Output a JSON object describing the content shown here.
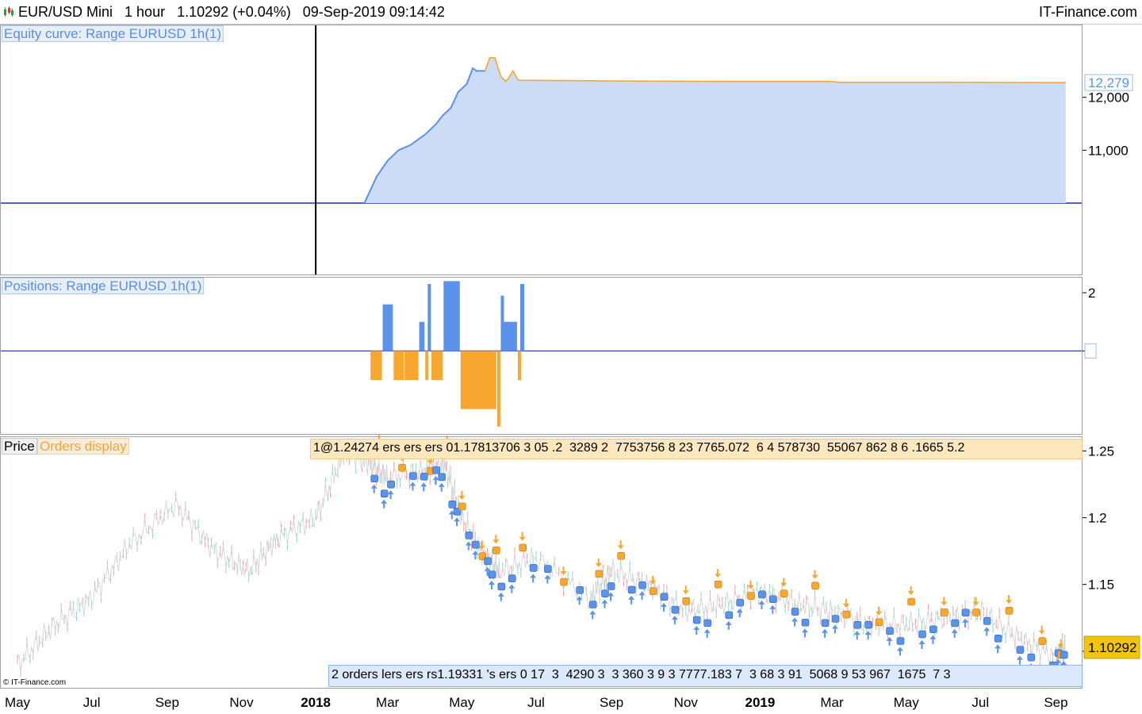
{
  "header": {
    "instrument": "EUR/USD Mini",
    "timeframe": "1 hour",
    "price": "1.10292",
    "change": "(+0.04%)",
    "datetime": "09-Sep-2019 09:14:42",
    "brand": "IT-Finance.com"
  },
  "panels": {
    "equity_label": "Equity curve: Range EURUSD 1h(1)",
    "positions_label": "Positions: Range EURUSD 1h(1)",
    "price_label": "Price",
    "orders_label": "Orders display",
    "orders_top_text": "1@1.24274 ers ers ers 01.17813706 3 05 .2  3289 2  7753756 8 23 7765.072  6 4 578730  55067 862 8 6 .1665 5.2",
    "orders_bottom_text": "2 orders lers ers rs1.19331 's ers 0 17  3  4290 3  3 360 3 9 3 7777.183 7  3 68 3 91  5068 9 53 967  1675  7 3",
    "watermark": "© IT-Finance.com"
  },
  "colors": {
    "blue": "#5b93ea",
    "orange": "#f7a72d",
    "fill": "#ccdcf7",
    "price_tag": "#f2c40f"
  },
  "chart_data": [
    {
      "type": "area",
      "title": "Equity curve: Range EURUSD 1h(1)",
      "yticks": [
        "11,000",
        "12,000"
      ],
      "last_value_label": "12,279",
      "ylim": [
        8650,
        13300
      ],
      "x": [
        "2018-02-10",
        "2018-02-20",
        "2018-03-01",
        "2018-03-10",
        "2018-03-20",
        "2018-04-01",
        "2018-04-10",
        "2018-04-15",
        "2018-04-22",
        "2018-04-28",
        "2018-05-05",
        "2018-05-10",
        "2018-05-13",
        "2018-05-20",
        "2018-05-24",
        "2018-05-28",
        "2018-06-02",
        "2018-06-06",
        "2018-06-08",
        "2018-06-12",
        "2018-06-16",
        "2018-06-18",
        "2018-07-01",
        "2018-09-01",
        "2018-12-01",
        "2019-03-01",
        "2019-03-05",
        "2019-06-01",
        "2019-09-09"
      ],
      "y": [
        10000,
        10500,
        10800,
        11000,
        11100,
        11300,
        11500,
        11650,
        11800,
        12100,
        12250,
        12550,
        12500,
        12500,
        12750,
        12750,
        12400,
        12300,
        12350,
        12500,
        12330,
        12320,
        12320,
        12310,
        12300,
        12300,
        12285,
        12285,
        12279
      ]
    },
    {
      "type": "bar",
      "title": "Positions: Range EURUSD 1h(1)",
      "yticks": [
        "2",
        "0"
      ],
      "ylim": [
        -2.8,
        2.3
      ],
      "x": [
        "2018-02-15",
        "2018-02-25",
        "2018-03-06",
        "2018-03-15",
        "2018-03-27",
        "2018-04-01",
        "2018-04-03",
        "2018-04-06",
        "2018-04-16",
        "2018-04-30",
        "2018-05-30",
        "2018-06-02",
        "2018-06-04",
        "2018-06-16",
        "2018-06-18"
      ],
      "values": [
        -1,
        1.6,
        -1,
        -1,
        1,
        -1,
        2.3,
        -1,
        2.4,
        -2,
        -2.6,
        1.9,
        1,
        -1,
        2.3
      ]
    },
    {
      "type": "line",
      "title": "Price",
      "yticks": [
        "1.25",
        "1.2",
        "1.15",
        "1.1"
      ],
      "last_price": "1.10292",
      "ylim": [
        1.072,
        1.255
      ],
      "x": [
        "2017-05-01",
        "2017-06-01",
        "2017-07-01",
        "2017-08-01",
        "2017-09-08",
        "2017-10-10",
        "2017-11-07",
        "2017-12-01",
        "2018-01-01",
        "2018-01-25",
        "2018-02-15",
        "2018-03-01",
        "2018-04-01",
        "2018-04-17",
        "2018-05-01",
        "2018-05-20",
        "2018-06-01",
        "2018-07-01",
        "2018-08-15",
        "2018-09-01",
        "2018-10-01",
        "2018-11-01",
        "2018-12-01",
        "2019-01-01",
        "2019-02-01",
        "2019-03-01",
        "2019-04-01",
        "2019-05-01",
        "2019-06-01",
        "2019-07-01",
        "2019-08-01",
        "2019-09-01",
        "2019-09-09"
      ],
      "y": [
        1.09,
        1.12,
        1.14,
        1.18,
        1.21,
        1.175,
        1.16,
        1.185,
        1.2,
        1.25,
        1.24,
        1.23,
        1.235,
        1.24,
        1.2,
        1.17,
        1.16,
        1.17,
        1.14,
        1.16,
        1.15,
        1.13,
        1.135,
        1.145,
        1.135,
        1.13,
        1.12,
        1.12,
        1.125,
        1.13,
        1.11,
        1.095,
        1.103
      ]
    }
  ],
  "x_axis": {
    "range": [
      "2017-05-01",
      "2019-09-30"
    ],
    "ticks": [
      {
        "date": "2017-05-01",
        "label": "May",
        "bold": false
      },
      {
        "date": "2017-07-01",
        "label": "Jul",
        "bold": false
      },
      {
        "date": "2017-09-01",
        "label": "Sep",
        "bold": false
      },
      {
        "date": "2017-11-01",
        "label": "Nov",
        "bold": false
      },
      {
        "date": "2018-01-01",
        "label": "2018",
        "bold": true
      },
      {
        "date": "2018-03-01",
        "label": "Mar",
        "bold": false
      },
      {
        "date": "2018-05-01",
        "label": "May",
        "bold": false
      },
      {
        "date": "2018-07-01",
        "label": "Jul",
        "bold": false
      },
      {
        "date": "2018-09-01",
        "label": "Sep",
        "bold": false
      },
      {
        "date": "2018-11-01",
        "label": "Nov",
        "bold": false
      },
      {
        "date": "2019-01-01",
        "label": "2019",
        "bold": true
      },
      {
        "date": "2019-03-01",
        "label": "Mar",
        "bold": false
      },
      {
        "date": "2019-05-01",
        "label": "May",
        "bold": false
      },
      {
        "date": "2019-07-01",
        "label": "Jul",
        "bold": false
      },
      {
        "date": "2019-09-01",
        "label": "Sep",
        "bold": false
      }
    ]
  }
}
